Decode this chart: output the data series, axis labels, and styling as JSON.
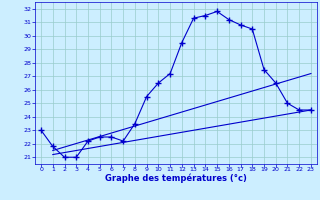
{
  "title": "",
  "xlabel": "Graphe des températures (°c)",
  "ylabel": "",
  "background_color": "#cceeff",
  "line_color": "#0000cc",
  "grid_color": "#99cccc",
  "ylim": [
    20.5,
    32.5
  ],
  "xlim": [
    -0.5,
    23.5
  ],
  "yticks": [
    21,
    22,
    23,
    24,
    25,
    26,
    27,
    28,
    29,
    30,
    31,
    32
  ],
  "xticks": [
    0,
    1,
    2,
    3,
    4,
    5,
    6,
    7,
    8,
    9,
    10,
    11,
    12,
    13,
    14,
    15,
    16,
    17,
    18,
    19,
    20,
    21,
    22,
    23
  ],
  "temp_curve": {
    "x": [
      0,
      1,
      2,
      3,
      4,
      5,
      6,
      7,
      8,
      9,
      10,
      11,
      12,
      13,
      14,
      15,
      16,
      17,
      18,
      19,
      20,
      21,
      22,
      23
    ],
    "y": [
      23.0,
      21.8,
      21.0,
      21.0,
      22.2,
      22.5,
      22.5,
      22.2,
      23.5,
      25.5,
      26.5,
      27.2,
      29.5,
      31.3,
      31.5,
      31.8,
      31.2,
      30.8,
      30.5,
      27.5,
      26.5,
      25.0,
      24.5,
      24.5
    ]
  },
  "line2": {
    "x": [
      1,
      23
    ],
    "y": [
      21.5,
      27.2
    ]
  },
  "line3": {
    "x": [
      1,
      23
    ],
    "y": [
      21.2,
      24.5
    ]
  }
}
